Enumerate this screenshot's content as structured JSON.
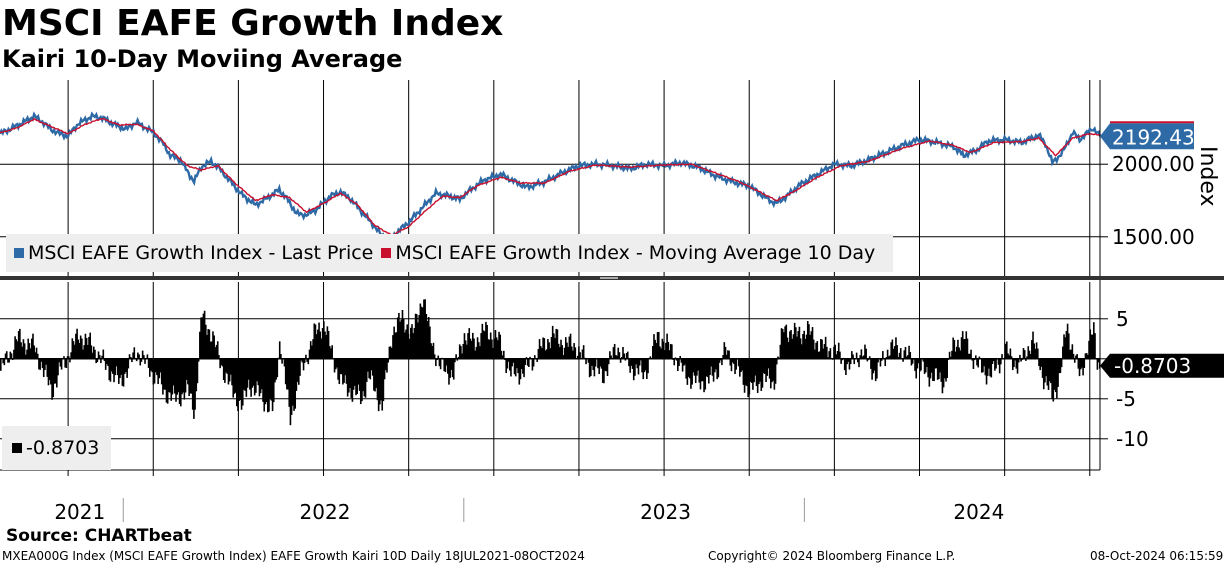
{
  "title": "MSCI EAFE Growth Index",
  "subtitle": "Kairi 10-Day Moviing Average",
  "source": "Source: CHARTbeat",
  "footer": {
    "left": "MXEA000G Index (MSCI EAFE Growth Index) EAFE Growth Kairi 10D  Daily 18JUL2021-08OCT2024",
    "center": "Copyright© 2024 Bloomberg Finance L.P.",
    "right": "08-Oct-2024 06:15:59"
  },
  "colors": {
    "price": "#2e6aa6",
    "ma": "#c8102e",
    "osc": "#000000",
    "grid": "#000000"
  },
  "chart_data": [
    {
      "type": "line",
      "panel": "top",
      "ylabel": "Index",
      "ylim": [
        1230,
        2580
      ],
      "yticks": [
        1500,
        2000
      ],
      "ytick_labels": [
        "1500.00",
        "2000.00"
      ],
      "last_value_label": "2192.43",
      "legend": [
        "MSCI EAFE Growth Index - Last Price",
        "MSCI EAFE Growth Index - Moving Average 10 Day"
      ],
      "x_range": [
        2021.55,
        2024.78
      ],
      "series": [
        {
          "name": "MSCI EAFE Growth Index - Last Price",
          "points": [
            [
              2021.55,
              2210
            ],
            [
              2021.6,
              2265
            ],
            [
              2021.65,
              2330
            ],
            [
              2021.67,
              2300
            ],
            [
              2021.7,
              2240
            ],
            [
              2021.73,
              2205
            ],
            [
              2021.75,
              2195
            ],
            [
              2021.78,
              2280
            ],
            [
              2021.82,
              2330
            ],
            [
              2021.85,
              2320
            ],
            [
              2021.88,
              2280
            ],
            [
              2021.92,
              2240
            ],
            [
              2021.95,
              2290
            ],
            [
              2022.0,
              2220
            ],
            [
              2022.03,
              2140
            ],
            [
              2022.05,
              2060
            ],
            [
              2022.08,
              2030
            ],
            [
              2022.1,
              1950
            ],
            [
              2022.12,
              1880
            ],
            [
              2022.14,
              1980
            ],
            [
              2022.17,
              2020
            ],
            [
              2022.19,
              1980
            ],
            [
              2022.22,
              1900
            ],
            [
              2022.26,
              1790
            ],
            [
              2022.3,
              1720
            ],
            [
              2022.33,
              1760
            ],
            [
              2022.37,
              1825
            ],
            [
              2022.4,
              1740
            ],
            [
              2022.42,
              1660
            ],
            [
              2022.45,
              1650
            ],
            [
              2022.48,
              1690
            ],
            [
              2022.52,
              1780
            ],
            [
              2022.55,
              1810
            ],
            [
              2022.58,
              1760
            ],
            [
              2022.62,
              1650
            ],
            [
              2022.64,
              1600
            ],
            [
              2022.67,
              1510
            ],
            [
              2022.7,
              1490
            ],
            [
              2022.72,
              1540
            ],
            [
              2022.75,
              1600
            ],
            [
              2022.79,
              1700
            ],
            [
              2022.83,
              1800
            ],
            [
              2022.87,
              1780
            ],
            [
              2022.9,
              1760
            ],
            [
              2022.93,
              1820
            ],
            [
              2022.97,
              1890
            ],
            [
              2023.02,
              1930
            ],
            [
              2023.07,
              1870
            ],
            [
              2023.1,
              1840
            ],
            [
              2023.15,
              1880
            ],
            [
              2023.2,
              1940
            ],
            [
              2023.25,
              1990
            ],
            [
              2023.3,
              2000
            ],
            [
              2023.35,
              1990
            ],
            [
              2023.4,
              1970
            ],
            [
              2023.45,
              2000
            ],
            [
              2023.5,
              1990
            ],
            [
              2023.55,
              2010
            ],
            [
              2023.6,
              1980
            ],
            [
              2023.65,
              1920
            ],
            [
              2023.7,
              1880
            ],
            [
              2023.75,
              1850
            ],
            [
              2023.78,
              1800
            ],
            [
              2023.81,
              1750
            ],
            [
              2023.83,
              1730
            ],
            [
              2023.86,
              1780
            ],
            [
              2023.9,
              1860
            ],
            [
              2023.95,
              1930
            ],
            [
              2024.0,
              2000
            ],
            [
              2024.05,
              1990
            ],
            [
              2024.1,
              2030
            ],
            [
              2024.15,
              2080
            ],
            [
              2024.2,
              2130
            ],
            [
              2024.25,
              2170
            ],
            [
              2024.3,
              2150
            ],
            [
              2024.35,
              2120
            ],
            [
              2024.38,
              2060
            ],
            [
              2024.42,
              2100
            ],
            [
              2024.45,
              2160
            ],
            [
              2024.5,
              2170
            ],
            [
              2024.55,
              2150
            ],
            [
              2024.6,
              2200
            ],
            [
              2024.62,
              2140
            ],
            [
              2024.64,
              2010
            ],
            [
              2024.67,
              2080
            ],
            [
              2024.7,
              2220
            ],
            [
              2024.72,
              2170
            ],
            [
              2024.75,
              2230
            ],
            [
              2024.76,
              2250
            ],
            [
              2024.78,
              2192
            ]
          ]
        },
        {
          "name": "MSCI EAFE Growth Index - Moving Average 10 Day",
          "points": [
            [
              2021.55,
              2215
            ],
            [
              2021.6,
              2250
            ],
            [
              2021.65,
              2310
            ],
            [
              2021.7,
              2260
            ],
            [
              2021.75,
              2210
            ],
            [
              2021.8,
              2275
            ],
            [
              2021.85,
              2315
            ],
            [
              2021.9,
              2270
            ],
            [
              2021.95,
              2275
            ],
            [
              2022.0,
              2230
            ],
            [
              2022.05,
              2100
            ],
            [
              2022.1,
              1990
            ],
            [
              2022.14,
              1960
            ],
            [
              2022.19,
              1990
            ],
            [
              2022.24,
              1870
            ],
            [
              2022.3,
              1750
            ],
            [
              2022.35,
              1790
            ],
            [
              2022.4,
              1770
            ],
            [
              2022.45,
              1670
            ],
            [
              2022.5,
              1730
            ],
            [
              2022.55,
              1800
            ],
            [
              2022.6,
              1720
            ],
            [
              2022.65,
              1580
            ],
            [
              2022.7,
              1510
            ],
            [
              2022.75,
              1570
            ],
            [
              2022.8,
              1680
            ],
            [
              2022.85,
              1780
            ],
            [
              2022.9,
              1770
            ],
            [
              2022.95,
              1850
            ],
            [
              2023.02,
              1910
            ],
            [
              2023.08,
              1870
            ],
            [
              2023.15,
              1870
            ],
            [
              2023.22,
              1950
            ],
            [
              2023.3,
              1995
            ],
            [
              2023.4,
              1980
            ],
            [
              2023.5,
              1995
            ],
            [
              2023.58,
              2000
            ],
            [
              2023.65,
              1940
            ],
            [
              2023.72,
              1880
            ],
            [
              2023.78,
              1810
            ],
            [
              2023.83,
              1750
            ],
            [
              2023.88,
              1810
            ],
            [
              2023.95,
              1910
            ],
            [
              2024.02,
              1990
            ],
            [
              2024.1,
              2020
            ],
            [
              2024.2,
              2110
            ],
            [
              2024.28,
              2160
            ],
            [
              2024.35,
              2130
            ],
            [
              2024.4,
              2080
            ],
            [
              2024.47,
              2150
            ],
            [
              2024.55,
              2155
            ],
            [
              2024.6,
              2180
            ],
            [
              2024.65,
              2060
            ],
            [
              2024.7,
              2180
            ],
            [
              2024.75,
              2210
            ],
            [
              2024.78,
              2200
            ]
          ]
        }
      ]
    },
    {
      "type": "bar",
      "panel": "bottom",
      "ylim": [
        -13.9,
        9.6
      ],
      "yticks": [
        5,
        0,
        -5,
        -10
      ],
      "ytick_labels": [
        "5",
        "",
        "-5",
        "-10"
      ],
      "last_value_label": "-0.8703",
      "legend": [
        "-0.8703"
      ],
      "x_range": [
        2021.55,
        2024.78
      ],
      "bar_step": 0.0035,
      "series": [
        {
          "name": "Kairi 10D",
          "points": [
            [
              2021.55,
              -1.5
            ],
            [
              2021.6,
              2.5
            ],
            [
              2021.65,
              1.5
            ],
            [
              2021.68,
              -2
            ],
            [
              2021.7,
              -4
            ],
            [
              2021.73,
              -1
            ],
            [
              2021.78,
              3
            ],
            [
              2021.82,
              1.5
            ],
            [
              2021.86,
              -1
            ],
            [
              2021.9,
              -3
            ],
            [
              2021.95,
              1
            ],
            [
              2022.0,
              -2
            ],
            [
              2022.03,
              -4
            ],
            [
              2022.06,
              -5
            ],
            [
              2022.1,
              -4
            ],
            [
              2022.12,
              -6.5
            ],
            [
              2022.14,
              5.5
            ],
            [
              2022.17,
              3
            ],
            [
              2022.2,
              -1
            ],
            [
              2022.23,
              -4
            ],
            [
              2022.26,
              -6
            ],
            [
              2022.28,
              -3
            ],
            [
              2022.31,
              -4.5
            ],
            [
              2022.35,
              -6.5
            ],
            [
              2022.37,
              2.5
            ],
            [
              2022.4,
              -7.5
            ],
            [
              2022.43,
              -2
            ],
            [
              2022.47,
              3
            ],
            [
              2022.5,
              4.5
            ],
            [
              2022.52,
              1
            ],
            [
              2022.55,
              -3
            ],
            [
              2022.58,
              -4
            ],
            [
              2022.61,
              -5
            ],
            [
              2022.63,
              -2
            ],
            [
              2022.67,
              -6
            ],
            [
              2022.7,
              3.5
            ],
            [
              2022.73,
              5
            ],
            [
              2022.76,
              3
            ],
            [
              2022.79,
              8
            ],
            [
              2022.81,
              3
            ],
            [
              2022.84,
              -1
            ],
            [
              2022.88,
              -2
            ],
            [
              2022.91,
              3
            ],
            [
              2022.94,
              2
            ],
            [
              2022.97,
              3.5
            ],
            [
              2023.01,
              2.5
            ],
            [
              2023.05,
              -2
            ],
            [
              2023.09,
              -1.5
            ],
            [
              2023.13,
              1
            ],
            [
              2023.17,
              3
            ],
            [
              2023.2,
              2
            ],
            [
              2023.24,
              1.5
            ],
            [
              2023.28,
              -1
            ],
            [
              2023.32,
              -2
            ],
            [
              2023.36,
              1.5
            ],
            [
              2023.4,
              -1
            ],
            [
              2023.44,
              -2
            ],
            [
              2023.48,
              3
            ],
            [
              2023.52,
              1
            ],
            [
              2023.56,
              -2
            ],
            [
              2023.6,
              -3
            ],
            [
              2023.64,
              -2.5
            ],
            [
              2023.68,
              1
            ],
            [
              2023.72,
              -2
            ],
            [
              2023.75,
              -4
            ],
            [
              2023.79,
              -2.5
            ],
            [
              2023.82,
              -3
            ],
            [
              2023.85,
              4
            ],
            [
              2023.88,
              3
            ],
            [
              2023.92,
              3.5
            ],
            [
              2023.96,
              1.5
            ],
            [
              2024.0,
              1
            ],
            [
              2024.04,
              -1
            ],
            [
              2024.08,
              1
            ],
            [
              2024.12,
              -2
            ],
            [
              2024.16,
              1.5
            ],
            [
              2024.2,
              1
            ],
            [
              2024.24,
              -1
            ],
            [
              2024.28,
              -2
            ],
            [
              2024.32,
              -3
            ],
            [
              2024.35,
              2
            ],
            [
              2024.38,
              2.5
            ],
            [
              2024.42,
              -1
            ],
            [
              2024.46,
              -2
            ],
            [
              2024.5,
              1
            ],
            [
              2024.54,
              -1
            ],
            [
              2024.58,
              2.5
            ],
            [
              2024.61,
              -2
            ],
            [
              2024.64,
              -5
            ],
            [
              2024.66,
              -2
            ],
            [
              2024.68,
              4
            ],
            [
              2024.7,
              1
            ],
            [
              2024.72,
              -2.5
            ],
            [
              2024.74,
              1.5
            ],
            [
              2024.76,
              3.5
            ],
            [
              2024.77,
              -0.5
            ],
            [
              2024.78,
              -0.87
            ]
          ]
        }
      ]
    }
  ],
  "x_axis": {
    "ticks": [
      2021.55,
      2022.0,
      2023.0,
      2024.0
    ],
    "year_labels": [
      {
        "label": "2021",
        "center": 2021.78
      },
      {
        "label": "2022",
        "center": 2022.5
      },
      {
        "label": "2023",
        "center": 2023.5
      },
      {
        "label": "2024",
        "center": 2024.42
      }
    ],
    "year_dividers": [
      2022.0,
      2023.0,
      2024.0
    ]
  }
}
